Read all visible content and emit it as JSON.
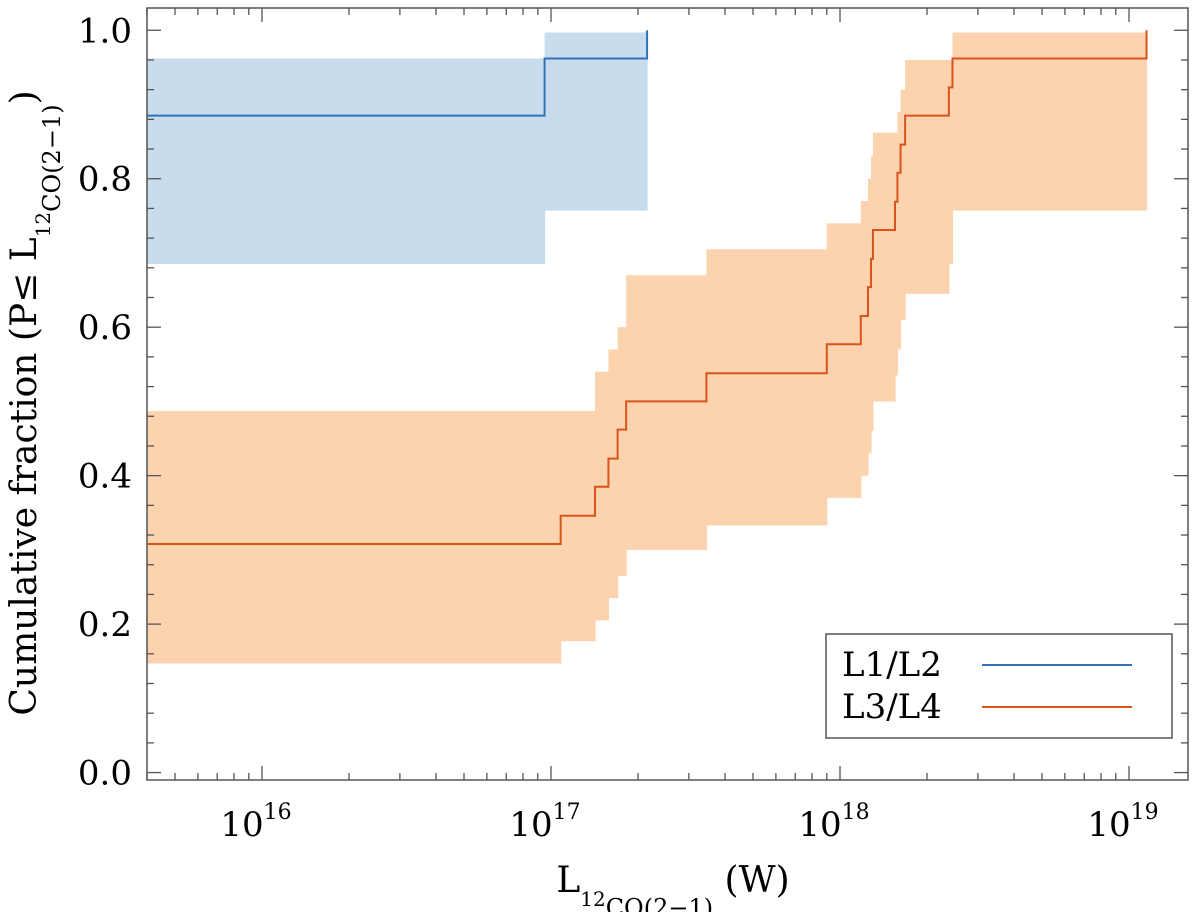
{
  "chart_data": {
    "type": "line",
    "subtype": "step-cdf-with-confidence-band",
    "xscale": "log",
    "xlim": [
      4000000000000000.0,
      1.6e+19
    ],
    "ylim": [
      -0.01,
      1.03
    ],
    "xticks": [
      1e+16,
      1e+17,
      1e+18,
      1e+19
    ],
    "xtick_mantissa": "10",
    "xtick_exponents": [
      "16",
      "17",
      "18",
      "19"
    ],
    "yticks": [
      0.0,
      0.2,
      0.4,
      0.6,
      0.8,
      1.0
    ],
    "ytick_labels": [
      "0.0",
      "0.2",
      "0.4",
      "0.6",
      "0.8",
      "1.0"
    ],
    "xlabel_parts": {
      "main": "L",
      "sup": "12",
      "sub": "CO(2−1)",
      "unit": " (W)"
    },
    "ylabel_parts": {
      "main": "Cumulative fraction (P≤ L",
      "sup": "12",
      "sub": "CO(2−1)",
      "close": ")"
    },
    "grid": false,
    "legend": {
      "position": "bottom-right",
      "entries": [
        "L1/L2",
        "L3/L4"
      ]
    },
    "series": [
      {
        "name": "L1/L2",
        "color": "#2f72b8",
        "band_color": "#c8dcee",
        "steps": [
          {
            "x": 4000000000000000.0,
            "y": 0.885,
            "lo": 0.685,
            "hi": 0.962
          },
          {
            "x": 9.5e+16,
            "y": 0.962,
            "lo": 0.757,
            "hi": 0.997
          },
          {
            "x": 2.15e+17,
            "y": 1.0
          }
        ]
      },
      {
        "name": "L3/L4",
        "color": "#d9541a",
        "band_color": "#fbd3ae",
        "steps": [
          {
            "x": 4000000000000000.0,
            "y": 0.308,
            "lo": 0.147,
            "hi": 0.487
          },
          {
            "x": 1.08e+17,
            "y": 0.346,
            "lo": 0.177,
            "hi": 0.487
          },
          {
            "x": 1.42e+17,
            "y": 0.385,
            "lo": 0.205,
            "hi": 0.54
          },
          {
            "x": 1.58e+17,
            "y": 0.423,
            "lo": 0.235,
            "hi": 0.57
          },
          {
            "x": 1.7e+17,
            "y": 0.462,
            "lo": 0.265,
            "hi": 0.6
          },
          {
            "x": 1.82e+17,
            "y": 0.5,
            "lo": 0.3,
            "hi": 0.67
          },
          {
            "x": 3.45e+17,
            "y": 0.538,
            "lo": 0.333,
            "hi": 0.705
          },
          {
            "x": 9e+17,
            "y": 0.577,
            "lo": 0.37,
            "hi": 0.74
          },
          {
            "x": 1.18e+18,
            "y": 0.615,
            "lo": 0.4,
            "hi": 0.77
          },
          {
            "x": 1.25e+18,
            "y": 0.654,
            "lo": 0.43,
            "hi": 0.8
          },
          {
            "x": 1.28e+18,
            "y": 0.692,
            "lo": 0.46,
            "hi": 0.83
          },
          {
            "x": 1.3e+18,
            "y": 0.731,
            "lo": 0.5,
            "hi": 0.862
          },
          {
            "x": 1.55e+18,
            "y": 0.769,
            "lo": 0.535,
            "hi": 0.862
          },
          {
            "x": 1.58e+18,
            "y": 0.808,
            "lo": 0.57,
            "hi": 0.89
          },
          {
            "x": 1.62e+18,
            "y": 0.846,
            "lo": 0.61,
            "hi": 0.92
          },
          {
            "x": 1.68e+18,
            "y": 0.885,
            "lo": 0.645,
            "hi": 0.96
          },
          {
            "x": 2.38e+18,
            "y": 0.923,
            "lo": 0.685,
            "hi": 0.96
          },
          {
            "x": 2.45e+18,
            "y": 0.962,
            "lo": 0.757,
            "hi": 0.997
          },
          {
            "x": 1.15e+19,
            "y": 1.0
          }
        ]
      }
    ]
  }
}
